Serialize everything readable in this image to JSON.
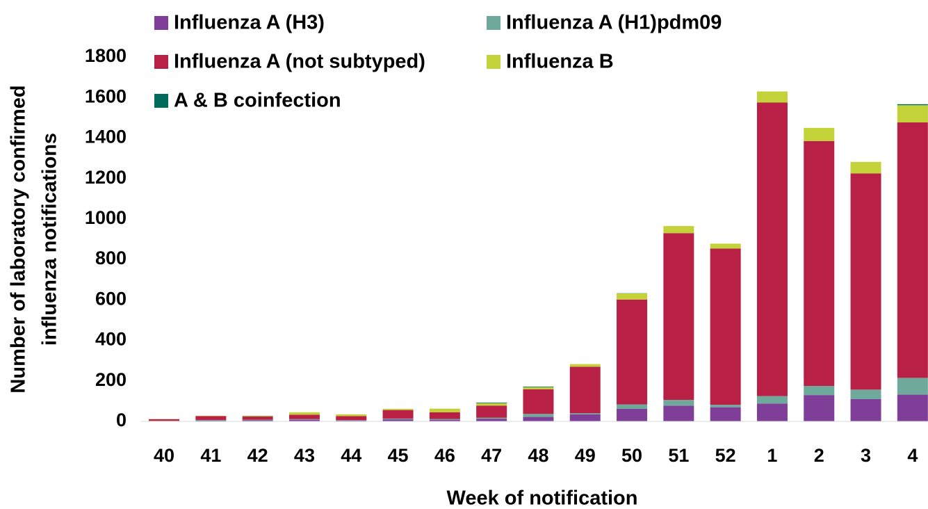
{
  "chart_data": {
    "type": "stacked_bar",
    "x_label": "Week of notification",
    "y_label": [
      "Number of laboratory confirmed",
      "influenza notifications"
    ],
    "categories": [
      "40",
      "41",
      "42",
      "43",
      "44",
      "45",
      "46",
      "47",
      "48",
      "49",
      "50",
      "51",
      "52",
      "1",
      "2",
      "3",
      "4"
    ],
    "series": [
      {
        "name": "Influenza A (H3)",
        "color": "#7f3f98",
        "values": [
          2,
          4,
          5,
          8,
          4,
          10,
          8,
          12,
          22,
          35,
          62,
          78,
          70,
          88,
          130,
          110,
          132
        ]
      },
      {
        "name": "Influenza A (H1)pdm09",
        "color": "#6fa99c",
        "values": [
          1,
          3,
          3,
          3,
          2,
          4,
          4,
          6,
          15,
          5,
          22,
          28,
          12,
          37,
          45,
          47,
          83
        ]
      },
      {
        "name": "Influenza A (not subtyped)",
        "color": "#b92046",
        "values": [
          8,
          19,
          16,
          22,
          20,
          42,
          33,
          60,
          122,
          230,
          518,
          824,
          772,
          1450,
          1210,
          1068,
          1262
        ]
      },
      {
        "name": "Influenza B",
        "color": "#c4d23a",
        "values": [
          1,
          2,
          3,
          12,
          9,
          6,
          18,
          12,
          10,
          13,
          30,
          35,
          24,
          55,
          65,
          57,
          85
        ]
      },
      {
        "name": "A & B coinfection",
        "color": "#006b5a",
        "values": [
          0,
          0,
          1,
          0,
          0,
          0,
          0,
          3,
          3,
          0,
          1,
          0,
          0,
          0,
          0,
          0,
          5
        ]
      }
    ],
    "ylim": [
      0,
      1800
    ],
    "yticks": [
      0,
      200,
      400,
      600,
      800,
      1000,
      1200,
      1400,
      1600,
      1800
    ],
    "grid": false,
    "legend": "top"
  }
}
